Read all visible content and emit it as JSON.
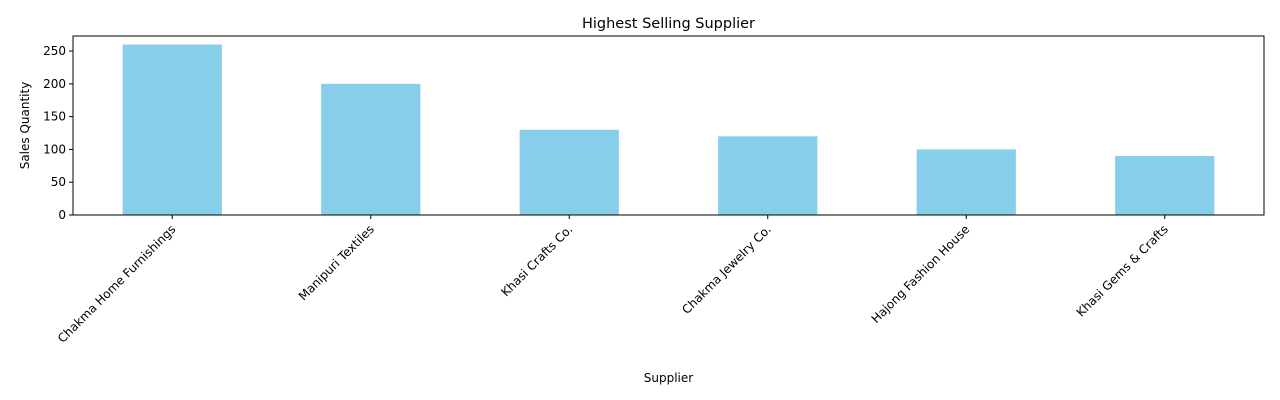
{
  "chart_data": {
    "type": "bar",
    "title": "Highest Selling Supplier",
    "xlabel": "Supplier",
    "ylabel": "Sales Quantity",
    "categories": [
      "Chakma Home Furnishings",
      "Manipuri Textiles",
      "Khasi Crafts Co.",
      "Chakma Jewelry Co.",
      "Hajong Fashion House",
      "Khasi Gems & Crafts"
    ],
    "values": [
      260,
      200,
      130,
      120,
      100,
      90
    ],
    "ylim": [
      0,
      273
    ],
    "yticks": [
      0,
      50,
      100,
      150,
      200,
      250
    ],
    "bar_color": "#87CEEB",
    "grid": false,
    "legend": "none"
  }
}
